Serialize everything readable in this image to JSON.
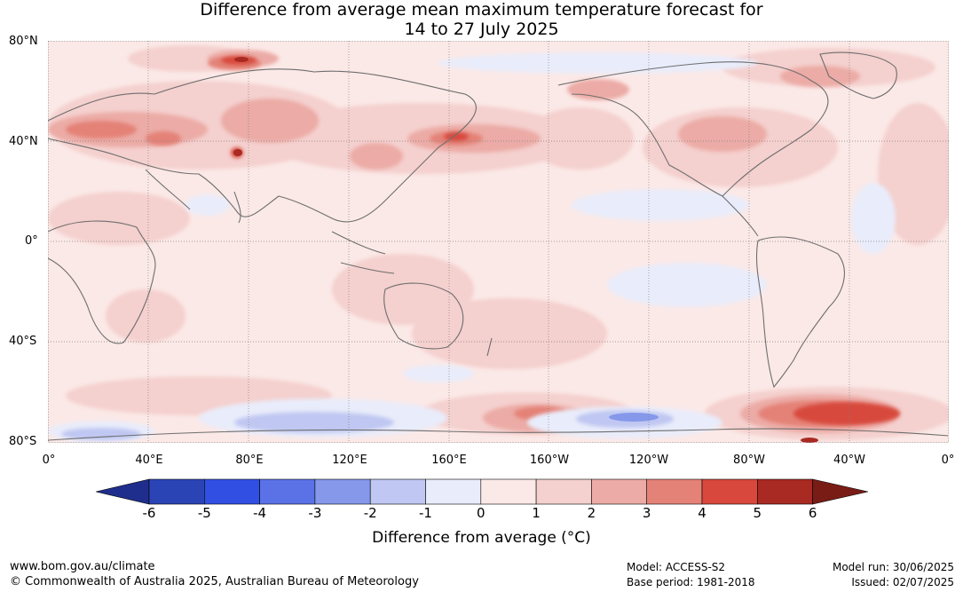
{
  "title_line1": "Difference from average mean maximum temperature forecast for",
  "title_line2": "14 to 27 July 2025",
  "lat_labels": [
    "80°N",
    "40°N",
    "0°",
    "40°S",
    "80°S"
  ],
  "lon_labels": [
    "0°",
    "40°E",
    "80°E",
    "120°E",
    "160°E",
    "160°W",
    "120°W",
    "80°W",
    "40°W",
    "0°"
  ],
  "colorbar": {
    "ticks": [
      "-6",
      "-5",
      "-4",
      "-3",
      "-2",
      "-1",
      "0",
      "1",
      "2",
      "3",
      "4",
      "5",
      "6"
    ],
    "title": "Difference from average (°C)",
    "colors": [
      "#1f2e8c",
      "#2b44b5",
      "#3150e3",
      "#5a72e6",
      "#8598ea",
      "#bfc7f2",
      "#e9ecfa",
      "#fbe9e7",
      "#f4d0ce",
      "#ecaba6",
      "#e48277",
      "#d8483c",
      "#a92a22",
      "#7a1c16"
    ]
  },
  "footer": {
    "url": "www.bom.gov.au/climate",
    "copyright": "© Commonwealth of Australia 2025, Australian Bureau of Meteorology",
    "model": "Model: ACCESS-S2",
    "base_period": "Base period: 1981-2018",
    "model_run": "Model run: 30/06/2025",
    "issued": "Issued: 02/07/2025"
  }
}
